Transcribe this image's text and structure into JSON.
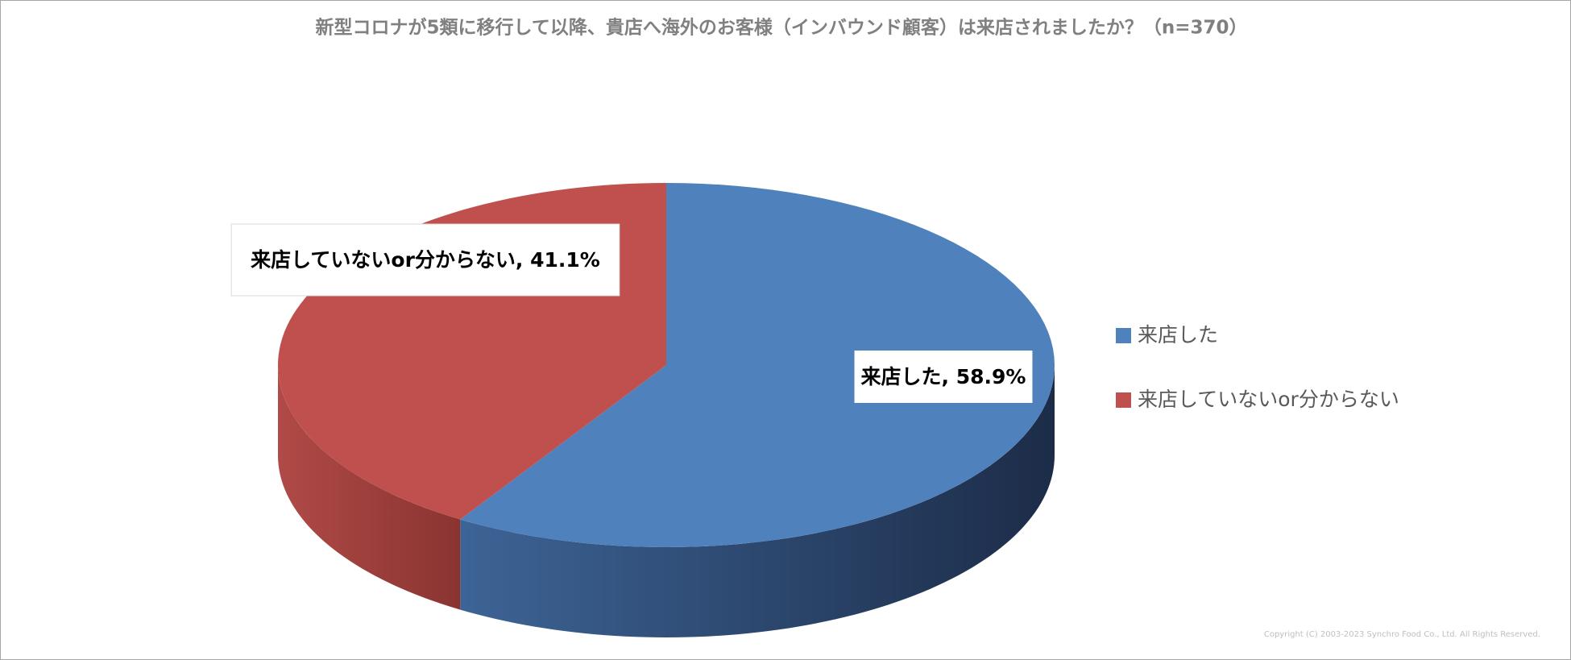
{
  "chart_data": {
    "type": "pie3d",
    "title": "新型コロナが5類に移行して以降、貴店へ海外のお客様（インバウンド顧客）は来店されましたか？（n=370）",
    "categories": [
      "来店した",
      "来店していないor分からない"
    ],
    "values": [
      58.9,
      41.1
    ],
    "value_labels": [
      "来店した, 58.9%",
      "来店していないor分からない, 41.1%"
    ],
    "colors": [
      "#4f81bd",
      "#c0504d"
    ],
    "legend": "right",
    "copyright": "Copyright (C) 2003-2023 Synchro Food Co., Ltd. All Rights Reserved."
  }
}
